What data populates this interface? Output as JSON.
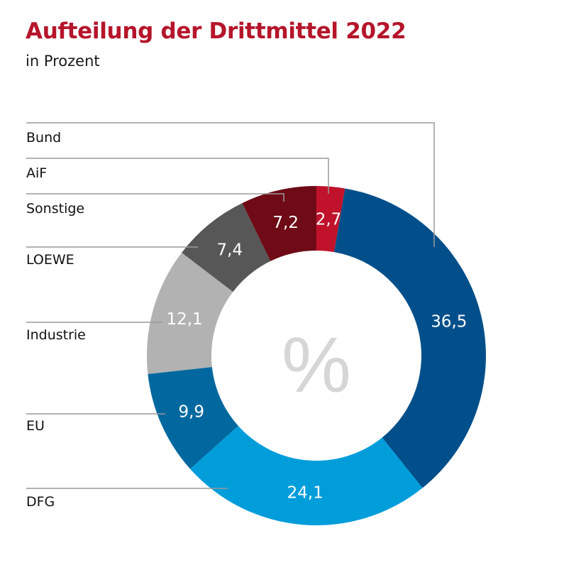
{
  "chart_data": {
    "type": "pie",
    "variant": "donut",
    "title": "Aufteilung der Drittmittel 2022",
    "subtitle": "in Prozent",
    "center_label": "%",
    "slices": [
      {
        "label": "AiF",
        "value": 2.7,
        "display": "2,7",
        "color": "#c0122a"
      },
      {
        "label": "Bund",
        "value": 36.5,
        "display": "36,5",
        "color": "#004f8a"
      },
      {
        "label": "DFG",
        "value": 24.1,
        "display": "24,1",
        "color": "#009ddb"
      },
      {
        "label": "EU",
        "value": 9.9,
        "display": "9,9",
        "color": "#00689f"
      },
      {
        "label": "Industrie",
        "value": 12.1,
        "display": "12,1",
        "color": "#b2b2b2"
      },
      {
        "label": "LOEWE",
        "value": 7.4,
        "display": "7,4",
        "color": "#575757"
      },
      {
        "label": "Sonstige",
        "value": 7.2,
        "display": "7,2",
        "color": "#6e0b16"
      }
    ]
  }
}
